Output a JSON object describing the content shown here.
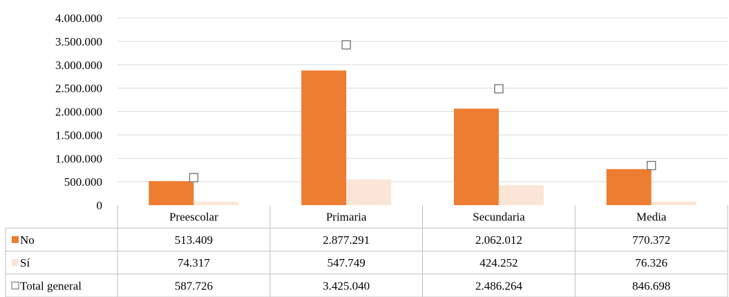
{
  "chart_data": {
    "type": "bar",
    "categories": [
      "Preescolar",
      "Primaria",
      "Secundaria",
      "Media"
    ],
    "series": [
      {
        "name": "No",
        "values": [
          513409,
          2877291,
          2062012,
          770372
        ],
        "display": [
          "513.409",
          "2.877.291",
          "2.062.012",
          "770.372"
        ],
        "color": "#ED7D31",
        "kind": "bar"
      },
      {
        "name": "Sí",
        "values": [
          74317,
          547749,
          424252,
          76326
        ],
        "display": [
          "74.317",
          "547.749",
          "424.252",
          "76.326"
        ],
        "color": "#FBE5D6",
        "kind": "bar"
      },
      {
        "name": "Total general",
        "values": [
          587726,
          3425040,
          2486264,
          846698
        ],
        "display": [
          "587.726",
          "3.425.040",
          "2.486.264",
          "846.698"
        ],
        "color": "#7F7F7F",
        "kind": "marker"
      }
    ],
    "y_ticks": [
      0,
      500000,
      1000000,
      1500000,
      2000000,
      2500000,
      3000000,
      3500000,
      4000000
    ],
    "y_tick_labels": [
      "0",
      "500.000",
      "1.000.000",
      "1.500.000",
      "2.000.000",
      "2.500.000",
      "3.000.000",
      "3.500.000",
      "4.000.000"
    ],
    "ylim": [
      0,
      4000000
    ],
    "grid": true,
    "legend": "data-table"
  }
}
